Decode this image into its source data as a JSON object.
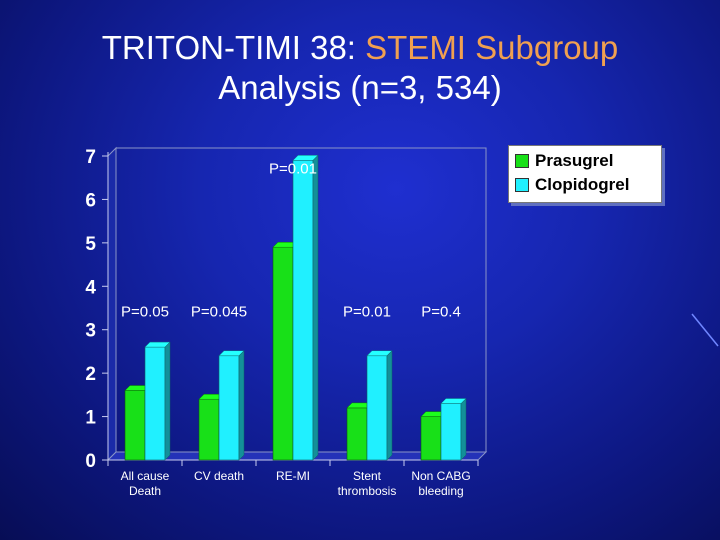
{
  "title": {
    "part1": "TRITON-TIMI 38: ",
    "part2": "STEMI Subgroup",
    "line2": "Analysis (n=3, 534)"
  },
  "colors": {
    "prasugrel": "#18e018",
    "clopidogrel": "#20f0ff",
    "title_accent": "#f0a050"
  },
  "chart_data": {
    "type": "bar",
    "categories": [
      [
        "All cause",
        "Death"
      ],
      [
        "CV death"
      ],
      [
        "RE-MI"
      ],
      [
        "Stent",
        "thrombosis"
      ],
      [
        "Non CABG",
        "bleeding"
      ]
    ],
    "series": [
      {
        "name": "Prasugrel",
        "values": [
          1.6,
          1.4,
          4.9,
          1.2,
          1.0
        ]
      },
      {
        "name": "Clopidogrel",
        "values": [
          2.6,
          2.4,
          6.9,
          2.4,
          1.3
        ]
      }
    ],
    "yticks": [
      "0",
      "1",
      "2",
      "3",
      "4",
      "5",
      "6",
      "7"
    ],
    "ylim": [
      0,
      7
    ],
    "annotations": [
      {
        "text": "P=0.05",
        "category": 0,
        "y": 3.3
      },
      {
        "text": "P=0.045",
        "category": 1,
        "y": 3.3
      },
      {
        "text": "P=0.01",
        "category": 2,
        "y": 6.6
      },
      {
        "text": "P=0.01",
        "category": 3,
        "y": 3.3
      },
      {
        "text": "P=0.4",
        "category": 4,
        "y": 3.3
      }
    ],
    "legend_position": "top-right"
  }
}
